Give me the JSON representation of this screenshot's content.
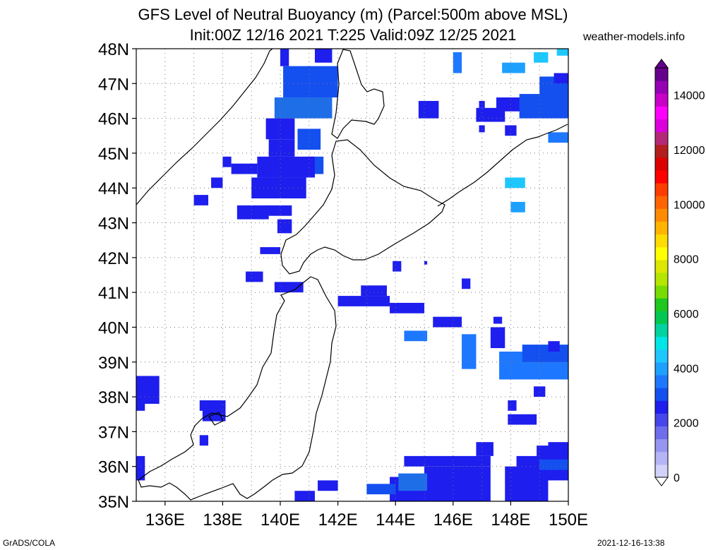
{
  "title": {
    "line1": "GFS Level of Neutral Buoyancy (m) (Parcel:500m above MSL)",
    "line2": "Init:00Z 12/16 2021 T:225 Valid:09Z 12/25 2021"
  },
  "site": "weather-models.info",
  "footer": {
    "left": "GrADS/COLA",
    "right": "2021-12-16-13:38"
  },
  "map": {
    "lon_range": [
      135,
      150
    ],
    "lat_range": [
      35,
      48
    ],
    "lat_labels": [
      "35N",
      "36N",
      "37N",
      "38N",
      "39N",
      "40N",
      "41N",
      "42N",
      "43N",
      "44N",
      "45N",
      "46N",
      "47N",
      "48N"
    ],
    "lon_labels": [
      "136E",
      "138E",
      "140E",
      "142E",
      "144E",
      "146E",
      "148E",
      "150E"
    ]
  },
  "colorbar": {
    "labels": [
      "0",
      "2000",
      "4000",
      "6000",
      "8000",
      "10000",
      "12000",
      "14000"
    ],
    "colors": [
      "#d2d2fa",
      "#b4b4f6",
      "#9696f0",
      "#6e6eec",
      "#4646ea",
      "#1e1eee",
      "#1450f0",
      "#1e78ff",
      "#1ea0ff",
      "#1ec8ff",
      "#00e6e6",
      "#00d2a0",
      "#00c850",
      "#1ec81e",
      "#78dc00",
      "#b4e600",
      "#dce600",
      "#ffff00",
      "#ffdc00",
      "#ffb400",
      "#ff8c00",
      "#ff6400",
      "#ff3c00",
      "#ff0000",
      "#dc0000",
      "#b41e1e",
      "#b42878",
      "#dc00dc",
      "#ff00ff",
      "#c800c8",
      "#9600b4",
      "#64008c"
    ]
  },
  "field_cells": [
    [
      140,
      47.5,
      0.3,
      0.6,
      "#1e1eee"
    ],
    [
      141.2,
      47.6,
      0.6,
      0.6,
      "#1e1eee"
    ],
    [
      140.1,
      46.6,
      1.9,
      0.9,
      "#1450f0"
    ],
    [
      139.8,
      46.0,
      2.0,
      0.6,
      "#1e6ee8"
    ],
    [
      139.5,
      45.4,
      1.0,
      0.6,
      "#1e1eee"
    ],
    [
      140.6,
      45.1,
      0.8,
      0.6,
      "#1450f0"
    ],
    [
      139.6,
      44.9,
      0.9,
      0.5,
      "#1e1eee"
    ],
    [
      140.9,
      44.4,
      0.6,
      0.5,
      "#1450f0"
    ],
    [
      139.2,
      44.3,
      2.0,
      0.6,
      "#1e1eee"
    ],
    [
      138.8,
      44.4,
      0.4,
      0.3,
      "#1e1eee"
    ],
    [
      138.3,
      44.4,
      0.5,
      0.3,
      "#1e1eee"
    ],
    [
      139.0,
      43.7,
      1.9,
      0.6,
      "#1e1eee"
    ],
    [
      138.5,
      43.1,
      1.1,
      0.4,
      "#1e1eee"
    ],
    [
      139.5,
      43.2,
      0.9,
      0.3,
      "#1e1eee"
    ],
    [
      139.9,
      42.7,
      0.5,
      0.4,
      "#1e1eee"
    ],
    [
      139.3,
      42.1,
      0.7,
      0.2,
      "#1e1eee"
    ],
    [
      137.0,
      43.5,
      0.5,
      0.3,
      "#1e1eee"
    ],
    [
      137.6,
      44.0,
      0.4,
      0.3,
      "#1e1eee"
    ],
    [
      138.0,
      44.6,
      0.3,
      0.3,
      "#1e1eee"
    ],
    [
      139.8,
      41.0,
      1.0,
      0.3,
      "#1e1eee"
    ],
    [
      138.8,
      41.3,
      0.6,
      0.3,
      "#1e1eee"
    ],
    [
      142.0,
      40.6,
      1.8,
      0.3,
      "#1e1eee"
    ],
    [
      142.8,
      40.9,
      0.9,
      0.3,
      "#1e1eee"
    ],
    [
      143.8,
      40.4,
      1.2,
      0.3,
      "#1e1eee"
    ],
    [
      145.3,
      40.0,
      1.0,
      0.3,
      "#1e1eee"
    ],
    [
      145.0,
      41.8,
      0.1,
      0.1,
      "#1e1eee"
    ],
    [
      143.9,
      41.6,
      0.3,
      0.3,
      "#1e1eee"
    ],
    [
      146.3,
      41.1,
      0.3,
      0.3,
      "#1e1eee"
    ],
    [
      144.3,
      39.6,
      0.8,
      0.3,
      "#1e78ff"
    ],
    [
      146.3,
      38.8,
      0.5,
      1.0,
      "#1e78ff"
    ],
    [
      147.3,
      39.4,
      0.5,
      0.6,
      "#1e1eee"
    ],
    [
      147.4,
      40.1,
      0.3,
      0.2,
      "#1e1eee"
    ],
    [
      147.6,
      38.5,
      2.5,
      0.8,
      "#1e78ff"
    ],
    [
      148.4,
      39.0,
      1.6,
      0.5,
      "#1450f0"
    ],
    [
      149.3,
      39.3,
      0.4,
      0.3,
      "#1e1eee"
    ],
    [
      148.8,
      38.0,
      0.4,
      0.3,
      "#1e1eee"
    ],
    [
      147.9,
      37.2,
      1.0,
      0.3,
      "#1e1eee"
    ],
    [
      147.9,
      37.6,
      0.3,
      0.3,
      "#1e1eee"
    ],
    [
      144.3,
      36.0,
      3.0,
      0.3,
      "#1e1eee"
    ],
    [
      145.0,
      35.0,
      2.3,
      1.0,
      "#1e1eee"
    ],
    [
      143.8,
      35.0,
      1.2,
      0.7,
      "#1e1eee"
    ],
    [
      143.0,
      35.2,
      1.0,
      0.3,
      "#1450f0"
    ],
    [
      144.1,
      35.3,
      1.0,
      0.5,
      "#1e6ee8"
    ],
    [
      146.8,
      36.3,
      0.6,
      0.4,
      "#1e1eee"
    ],
    [
      147.8,
      35.0,
      1.5,
      1.0,
      "#1e1eee"
    ],
    [
      148.2,
      35.6,
      1.8,
      0.7,
      "#1e1eee"
    ],
    [
      148.9,
      36.0,
      1.1,
      0.6,
      "#1e1eee"
    ],
    [
      149.3,
      36.3,
      0.7,
      0.4,
      "#1e1eee"
    ],
    [
      149.0,
      35.9,
      1.0,
      0.3,
      "#1450f0"
    ],
    [
      140.5,
      35.0,
      0.7,
      0.3,
      "#1e1eee"
    ],
    [
      141.3,
      35.3,
      0.7,
      0.3,
      "#1e1eee"
    ],
    [
      135.0,
      37.8,
      0.8,
      0.8,
      "#1e1eee"
    ],
    [
      135.0,
      37.6,
      0.3,
      0.3,
      "#1e1eee"
    ],
    [
      135.0,
      35.6,
      0.3,
      0.7,
      "#1e1eee"
    ],
    [
      137.3,
      37.3,
      0.8,
      0.6,
      "#1e1eee"
    ],
    [
      137.2,
      36.6,
      0.3,
      0.3,
      "#1e1eee"
    ],
    [
      137.2,
      37.6,
      0.3,
      0.3,
      "#1e1eee"
    ],
    [
      144.8,
      46.0,
      0.7,
      0.5,
      "#1e1eee"
    ],
    [
      146.8,
      45.9,
      1.0,
      0.4,
      "#1e1eee"
    ],
    [
      147.5,
      46.2,
      1.5,
      0.4,
      "#1e1eee"
    ],
    [
      148.3,
      46.0,
      1.7,
      0.7,
      "#1450f0"
    ],
    [
      149.0,
      46.6,
      1.0,
      0.6,
      "#1450f0"
    ],
    [
      149.5,
      47.0,
      0.5,
      0.3,
      "#1e1eee"
    ],
    [
      149.3,
      45.3,
      0.7,
      0.3,
      "#1e78ff"
    ],
    [
      147.8,
      45.5,
      0.4,
      0.3,
      "#1e1eee"
    ],
    [
      147.8,
      44.0,
      0.7,
      0.3,
      "#1ec8ff"
    ],
    [
      148.0,
      43.3,
      0.5,
      0.3,
      "#1ea0ff"
    ],
    [
      146.0,
      47.3,
      0.3,
      0.6,
      "#1e78ff"
    ],
    [
      147.7,
      47.3,
      0.8,
      0.3,
      "#1ea0ff"
    ],
    [
      148.8,
      47.6,
      0.5,
      0.3,
      "#1ec8ff"
    ],
    [
      149.6,
      47.8,
      0.4,
      0.3,
      "#1ec8ff"
    ],
    [
      146.9,
      46.3,
      0.2,
      0.2,
      "#1e1eee"
    ],
    [
      146.9,
      45.6,
      0.2,
      0.2,
      "#1e1eee"
    ]
  ]
}
